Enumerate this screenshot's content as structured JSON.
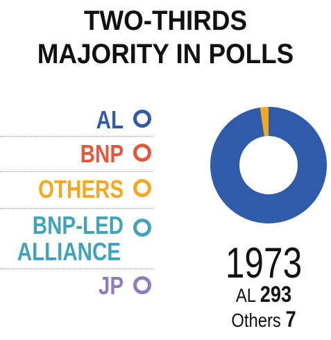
{
  "title": {
    "line1": "TWO-THIRDS",
    "line2": "MAJORITY IN POLLS"
  },
  "legend": [
    {
      "label": "AL",
      "color": "#2E5BAA"
    },
    {
      "label": "BNP",
      "color": "#E8553A"
    },
    {
      "label": "OTHERS",
      "color": "#F5A81C"
    },
    {
      "label_line1": "BNP-LED",
      "label_line2": "ALLIANCE",
      "color": "#3FA3BD"
    },
    {
      "label": "JP",
      "color": "#8E7CC3"
    }
  ],
  "chart_data": {
    "type": "pie",
    "title": "1973",
    "categories": [
      "AL",
      "Others"
    ],
    "values": [
      293,
      7
    ],
    "colors": [
      "#2E5BAA",
      "#F5A81C"
    ],
    "donut": true
  },
  "summary": {
    "year": "1973",
    "line1_label": "AL",
    "line1_value": "293",
    "line2_label": "Others",
    "line2_value": "7"
  }
}
